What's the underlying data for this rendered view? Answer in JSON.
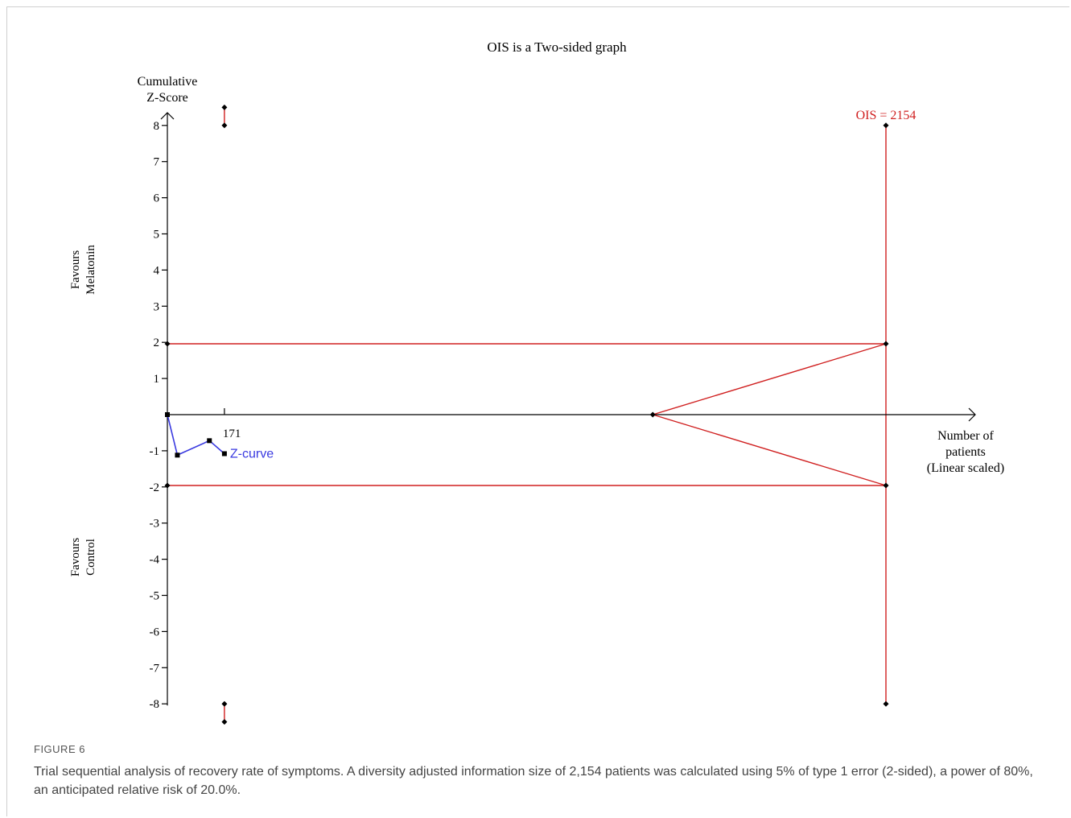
{
  "figure": {
    "label": "FIGURE 6",
    "caption": "Trial sequential analysis of recovery rate of symptoms. A diversity adjusted information size of 2,154 patients was calculated using 5% of type 1 error (2-sided), a power of 80%, an anticipated relative risk of 20.0%."
  },
  "chart_data": {
    "type": "line",
    "title": "OIS is a Two-sided graph",
    "ylabel_lines": [
      "Cumulative",
      "Z-Score"
    ],
    "xlabel_lines": [
      "Number of",
      "patients",
      "(Linear scaled)"
    ],
    "favour_top_lines": [
      "Favours",
      "Melatonin"
    ],
    "favour_bottom_lines": [
      "Favours",
      "Control"
    ],
    "ylim": [
      -8,
      8
    ],
    "xlim": [
      0,
      2400
    ],
    "y_ticks": [
      "8",
      "7",
      "6",
      "5",
      "4",
      "3",
      "2",
      "1",
      "-1",
      "-2",
      "-3",
      "-4",
      "-5",
      "-6",
      "-7",
      "-8"
    ],
    "x_tick_label": "171",
    "ois_value": 2154,
    "ois_label": "OIS = 2154",
    "conventional_boundary": 1.96,
    "futility_apex_x": 1455,
    "series": [
      {
        "name": "Z-curve",
        "color": "#3a3ae0",
        "x": [
          0,
          30,
          126,
          171
        ],
        "y": [
          0,
          -1.12,
          -0.72,
          -1.08
        ]
      }
    ],
    "alpha_spending_markers": [
      {
        "x": 171,
        "y_from": 8.5,
        "y_to": 8.0
      },
      {
        "x": 171,
        "y_from": -8.0,
        "y_to": -8.5
      }
    ],
    "boundary_color": "#d02020",
    "axis_color": "#000000"
  }
}
